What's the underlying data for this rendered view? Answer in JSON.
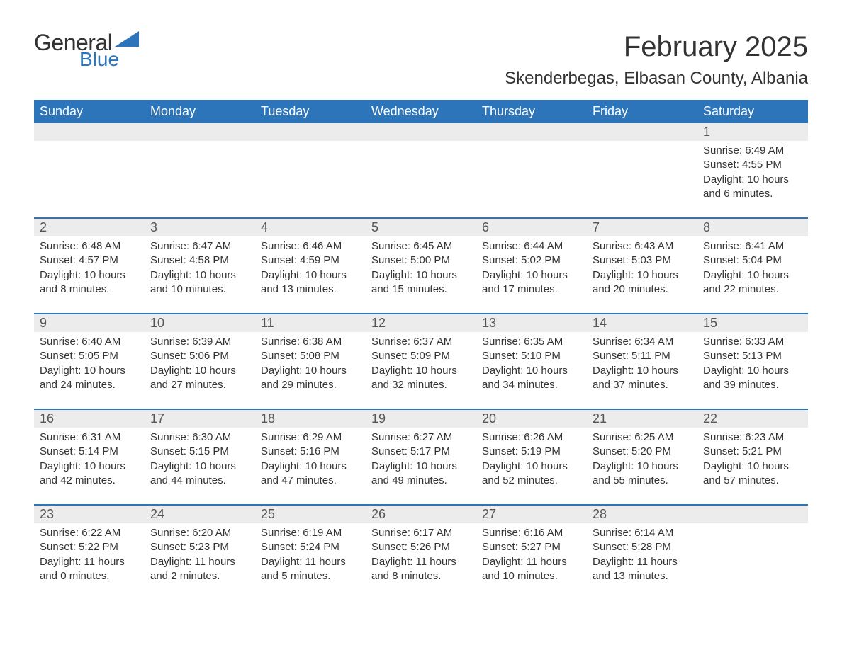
{
  "logo": {
    "text1": "General",
    "text2": "Blue",
    "brand_color": "#2d75bb"
  },
  "title": "February 2025",
  "subtitle": "Skenderbegas, Elbasan County, Albania",
  "styles": {
    "header_bg": "#2d75bb",
    "header_text_color": "#ffffff",
    "daynum_bg": "#ececec",
    "daynum_color": "#555555",
    "body_text_color": "#333333",
    "week_border_color": "#2d75bb",
    "page_bg": "#ffffff",
    "title_fontsize": 40,
    "subtitle_fontsize": 24,
    "header_fontsize": 18,
    "daynum_fontsize": 18,
    "cell_fontsize": 15
  },
  "day_names": [
    "Sunday",
    "Monday",
    "Tuesday",
    "Wednesday",
    "Thursday",
    "Friday",
    "Saturday"
  ],
  "weeks": [
    [
      null,
      null,
      null,
      null,
      null,
      null,
      {
        "n": "1",
        "sr": "6:49 AM",
        "ss": "4:55 PM",
        "dl": "10 hours and 6 minutes."
      }
    ],
    [
      {
        "n": "2",
        "sr": "6:48 AM",
        "ss": "4:57 PM",
        "dl": "10 hours and 8 minutes."
      },
      {
        "n": "3",
        "sr": "6:47 AM",
        "ss": "4:58 PM",
        "dl": "10 hours and 10 minutes."
      },
      {
        "n": "4",
        "sr": "6:46 AM",
        "ss": "4:59 PM",
        "dl": "10 hours and 13 minutes."
      },
      {
        "n": "5",
        "sr": "6:45 AM",
        "ss": "5:00 PM",
        "dl": "10 hours and 15 minutes."
      },
      {
        "n": "6",
        "sr": "6:44 AM",
        "ss": "5:02 PM",
        "dl": "10 hours and 17 minutes."
      },
      {
        "n": "7",
        "sr": "6:43 AM",
        "ss": "5:03 PM",
        "dl": "10 hours and 20 minutes."
      },
      {
        "n": "8",
        "sr": "6:41 AM",
        "ss": "5:04 PM",
        "dl": "10 hours and 22 minutes."
      }
    ],
    [
      {
        "n": "9",
        "sr": "6:40 AM",
        "ss": "5:05 PM",
        "dl": "10 hours and 24 minutes."
      },
      {
        "n": "10",
        "sr": "6:39 AM",
        "ss": "5:06 PM",
        "dl": "10 hours and 27 minutes."
      },
      {
        "n": "11",
        "sr": "6:38 AM",
        "ss": "5:08 PM",
        "dl": "10 hours and 29 minutes."
      },
      {
        "n": "12",
        "sr": "6:37 AM",
        "ss": "5:09 PM",
        "dl": "10 hours and 32 minutes."
      },
      {
        "n": "13",
        "sr": "6:35 AM",
        "ss": "5:10 PM",
        "dl": "10 hours and 34 minutes."
      },
      {
        "n": "14",
        "sr": "6:34 AM",
        "ss": "5:11 PM",
        "dl": "10 hours and 37 minutes."
      },
      {
        "n": "15",
        "sr": "6:33 AM",
        "ss": "5:13 PM",
        "dl": "10 hours and 39 minutes."
      }
    ],
    [
      {
        "n": "16",
        "sr": "6:31 AM",
        "ss": "5:14 PM",
        "dl": "10 hours and 42 minutes."
      },
      {
        "n": "17",
        "sr": "6:30 AM",
        "ss": "5:15 PM",
        "dl": "10 hours and 44 minutes."
      },
      {
        "n": "18",
        "sr": "6:29 AM",
        "ss": "5:16 PM",
        "dl": "10 hours and 47 minutes."
      },
      {
        "n": "19",
        "sr": "6:27 AM",
        "ss": "5:17 PM",
        "dl": "10 hours and 49 minutes."
      },
      {
        "n": "20",
        "sr": "6:26 AM",
        "ss": "5:19 PM",
        "dl": "10 hours and 52 minutes."
      },
      {
        "n": "21",
        "sr": "6:25 AM",
        "ss": "5:20 PM",
        "dl": "10 hours and 55 minutes."
      },
      {
        "n": "22",
        "sr": "6:23 AM",
        "ss": "5:21 PM",
        "dl": "10 hours and 57 minutes."
      }
    ],
    [
      {
        "n": "23",
        "sr": "6:22 AM",
        "ss": "5:22 PM",
        "dl": "11 hours and 0 minutes."
      },
      {
        "n": "24",
        "sr": "6:20 AM",
        "ss": "5:23 PM",
        "dl": "11 hours and 2 minutes."
      },
      {
        "n": "25",
        "sr": "6:19 AM",
        "ss": "5:24 PM",
        "dl": "11 hours and 5 minutes."
      },
      {
        "n": "26",
        "sr": "6:17 AM",
        "ss": "5:26 PM",
        "dl": "11 hours and 8 minutes."
      },
      {
        "n": "27",
        "sr": "6:16 AM",
        "ss": "5:27 PM",
        "dl": "11 hours and 10 minutes."
      },
      {
        "n": "28",
        "sr": "6:14 AM",
        "ss": "5:28 PM",
        "dl": "11 hours and 13 minutes."
      },
      null
    ]
  ],
  "labels": {
    "sunrise": "Sunrise: ",
    "sunset": "Sunset: ",
    "daylight": "Daylight: "
  }
}
